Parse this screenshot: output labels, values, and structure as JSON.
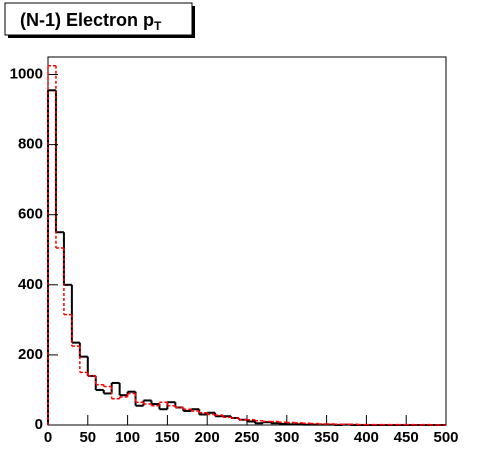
{
  "chart_data": {
    "type": "histogram",
    "title": "(N-1) Electron p",
    "title_subscript": "T",
    "bins": [
      0,
      10,
      20,
      30,
      40,
      50,
      60,
      70,
      80,
      90,
      100,
      110,
      120,
      130,
      140,
      150,
      160,
      170,
      180,
      190,
      200,
      210,
      220,
      230,
      240,
      250,
      260,
      270,
      280,
      290,
      300,
      310,
      320,
      330,
      340,
      350,
      360,
      370,
      380,
      390,
      400,
      410,
      420,
      430,
      440,
      450,
      460,
      470,
      480,
      490,
      500
    ],
    "series": [
      {
        "color": "#000000",
        "line_style": "solid",
        "values": [
          955,
          550,
          400,
          235,
          195,
          140,
          100,
          90,
          120,
          85,
          95,
          55,
          70,
          60,
          45,
          65,
          50,
          40,
          45,
          30,
          35,
          25,
          25,
          20,
          15,
          10,
          5,
          8,
          5,
          3,
          2,
          2,
          1,
          1,
          1,
          1,
          0,
          1,
          0,
          0,
          0,
          0,
          0,
          0,
          0,
          0,
          0,
          0,
          0,
          0
        ]
      },
      {
        "color": "#ff0000",
        "line_style": "dashed",
        "values": [
          1025,
          505,
          315,
          225,
          150,
          140,
          115,
          110,
          75,
          80,
          90,
          65,
          60,
          55,
          65,
          55,
          50,
          45,
          40,
          35,
          30,
          28,
          22,
          20,
          15,
          15,
          12,
          10,
          10,
          8,
          7,
          6,
          5,
          4,
          3,
          3,
          2,
          2,
          2,
          1,
          1,
          1,
          1,
          1,
          1,
          1,
          0,
          1,
          0,
          0
        ]
      }
    ],
    "xlim": [
      0,
      500
    ],
    "xticks": [
      0,
      50,
      100,
      150,
      200,
      250,
      300,
      350,
      400,
      450,
      500
    ],
    "ylim": [
      0,
      1050
    ],
    "yticks": [
      0,
      200,
      400,
      600,
      800,
      1000
    ]
  }
}
